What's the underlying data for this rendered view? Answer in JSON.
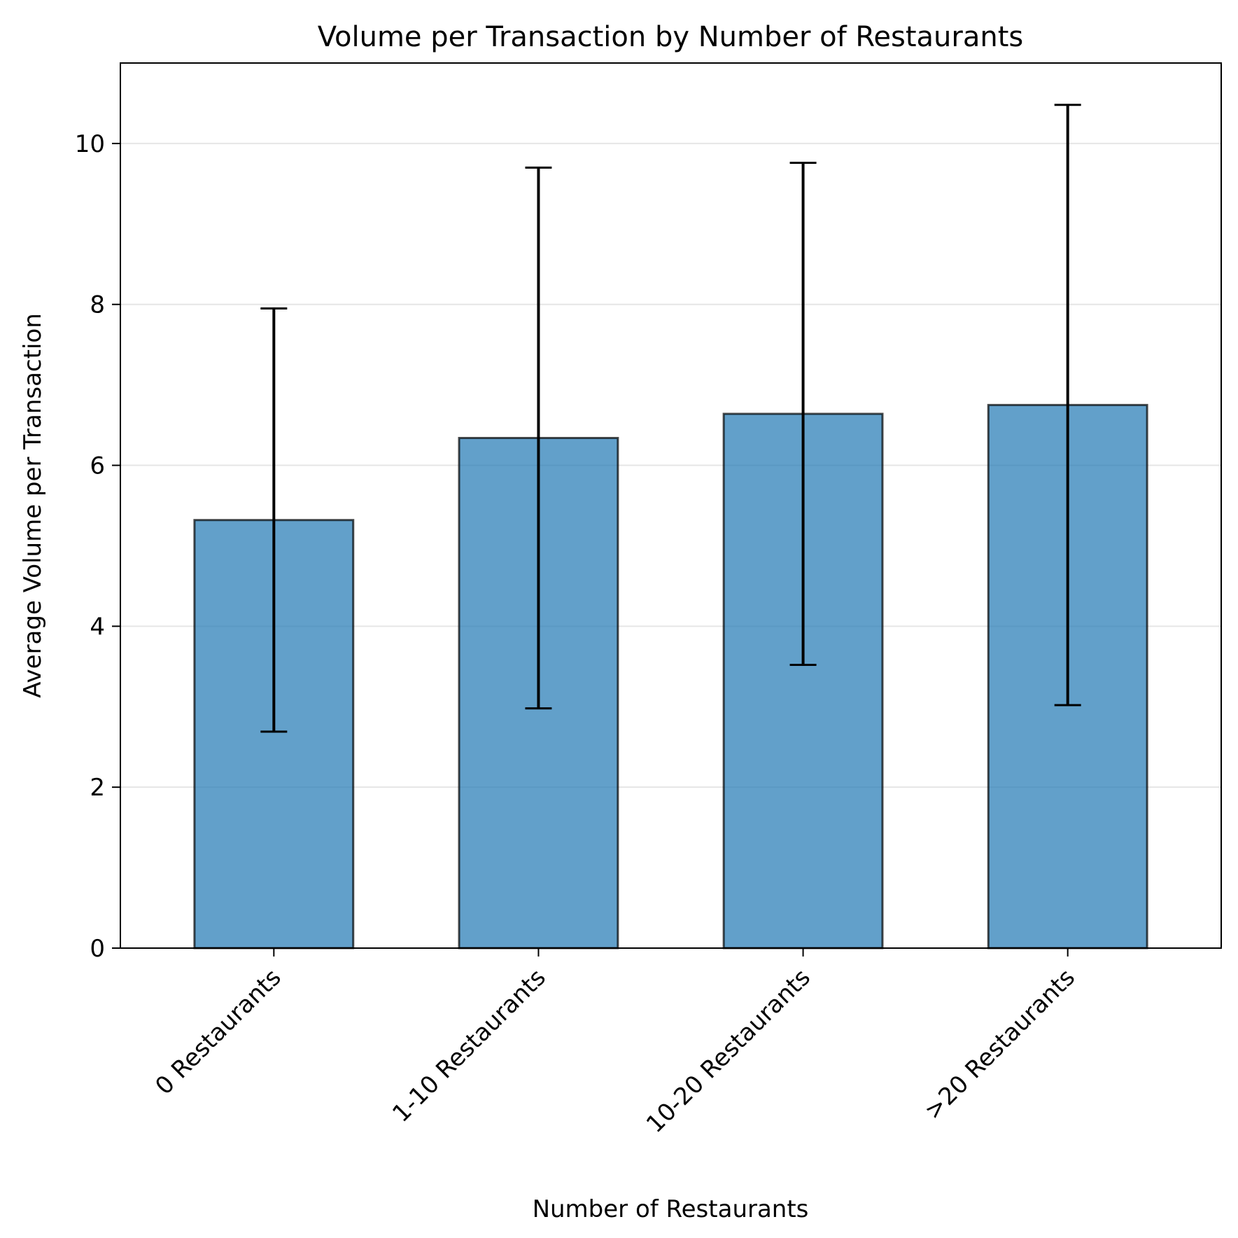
{
  "chart_data": {
    "type": "bar",
    "title": "Volume per Transaction by Number of Restaurants",
    "xlabel": "Number of Restaurants",
    "ylabel": "Average Volume per Transaction",
    "categories": [
      "0 Restaurants",
      "1-10 Restaurants",
      "10-20 Restaurants",
      ">20 Restaurants"
    ],
    "values": [
      5.32,
      6.34,
      6.64,
      6.75
    ],
    "errors": [
      2.63,
      3.36,
      3.12,
      3.73
    ],
    "ylim": [
      0,
      11
    ],
    "yticks": [
      0,
      2,
      4,
      6,
      8,
      10
    ],
    "grid": "y",
    "legend": "none",
    "colors": {
      "bar_fill": "#1f77b4",
      "bar_edge": "#000000",
      "error_bar": "#000000",
      "grid": "#e6e6e6"
    }
  }
}
